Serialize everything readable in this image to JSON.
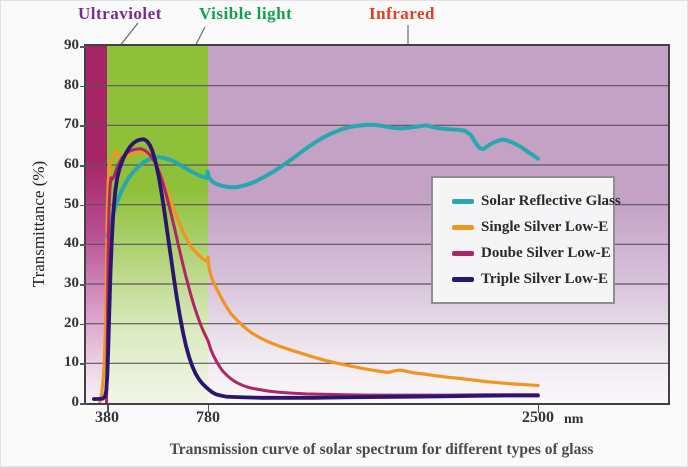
{
  "spectrum_labels": [
    {
      "id": "ultraviolet",
      "text": "Ultraviolet",
      "color": "#7b2b8f"
    },
    {
      "id": "visible-light",
      "text": "Visible light",
      "color": "#12a14b"
    },
    {
      "id": "infrared",
      "text": "Infrared",
      "color": "#e23d1d"
    }
  ],
  "chart_data": {
    "type": "line",
    "title": "Transmission curve of solar spectrum for different types of glass",
    "ylabel": "Transmittance (%)",
    "x_unit": "nm",
    "ylim": [
      0,
      90
    ],
    "y_ticks": [
      0,
      10,
      20,
      30,
      40,
      50,
      60,
      70,
      80,
      90
    ],
    "x_ticks": [
      380,
      780,
      2500
    ],
    "grid": true,
    "grid_color": "#5c555c",
    "legend_position": "middle-right",
    "x_axis": {
      "anchors_nm_to_frac": [
        [
          300,
          0.0
        ],
        [
          380,
          0.0361
        ],
        [
          780,
          0.2096
        ],
        [
          2500,
          0.7766
        ]
      ]
    },
    "bands": [
      {
        "name": "Ultraviolet",
        "from_nm": 300,
        "to_nm": 380,
        "color": "#a62566"
      },
      {
        "name": "Visible light",
        "from_nm": 380,
        "to_nm": 780,
        "color": "#8fc03a"
      },
      {
        "name": "Infrared",
        "from_nm": 780,
        "to_nm": 3000,
        "color": "#c3a2c5"
      }
    ],
    "series": [
      {
        "name": "Solar Reflective Glass",
        "color": "#28a8ae",
        "stroke_width": 4,
        "points": [
          [
            383,
            42
          ],
          [
            388,
            43.5
          ],
          [
            395,
            45.5
          ],
          [
            405,
            47.8
          ],
          [
            418,
            50.4
          ],
          [
            432,
            52.7
          ],
          [
            448,
            54.8
          ],
          [
            465,
            56.7
          ],
          [
            485,
            58.3
          ],
          [
            505,
            59.6
          ],
          [
            525,
            60.7
          ],
          [
            545,
            61.4
          ],
          [
            565,
            61.8
          ],
          [
            585,
            62
          ],
          [
            605,
            61.8
          ],
          [
            625,
            61.4
          ],
          [
            645,
            60.9
          ],
          [
            665,
            60.2
          ],
          [
            685,
            59.4
          ],
          [
            705,
            58.7
          ],
          [
            725,
            58
          ],
          [
            745,
            57.4
          ],
          [
            762,
            57
          ],
          [
            775,
            56.7
          ],
          [
            779,
            58.3
          ],
          [
            784,
            57
          ],
          [
            800,
            55.9
          ],
          [
            825,
            55.2
          ],
          [
            855,
            54.7
          ],
          [
            890,
            54.4
          ],
          [
            930,
            54.4
          ],
          [
            975,
            54.9
          ],
          [
            1020,
            55.7
          ],
          [
            1065,
            56.8
          ],
          [
            1110,
            58
          ],
          [
            1155,
            59.4
          ],
          [
            1200,
            60.9
          ],
          [
            1245,
            62.5
          ],
          [
            1290,
            64.1
          ],
          [
            1335,
            65.6
          ],
          [
            1380,
            66.9
          ],
          [
            1425,
            68
          ],
          [
            1470,
            68.9
          ],
          [
            1515,
            69.5
          ],
          [
            1560,
            69.9
          ],
          [
            1605,
            70.1
          ],
          [
            1650,
            70.1
          ],
          [
            1695,
            69.8
          ],
          [
            1740,
            69.4
          ],
          [
            1785,
            69.2
          ],
          [
            1830,
            69.4
          ],
          [
            1875,
            69.7
          ],
          [
            1915,
            70
          ],
          [
            1950,
            69.6
          ],
          [
            1990,
            69.2
          ],
          [
            2035,
            69
          ],
          [
            2080,
            68.9
          ],
          [
            2120,
            68.6
          ],
          [
            2150,
            67.6
          ],
          [
            2175,
            65.6
          ],
          [
            2195,
            64.3
          ],
          [
            2215,
            64
          ],
          [
            2240,
            64.9
          ],
          [
            2265,
            65.6
          ],
          [
            2290,
            66.1
          ],
          [
            2315,
            66.4
          ],
          [
            2340,
            66.2
          ],
          [
            2365,
            65.7
          ],
          [
            2395,
            65
          ],
          [
            2425,
            64.1
          ],
          [
            2455,
            63.1
          ],
          [
            2480,
            62.3
          ],
          [
            2500,
            61.6
          ]
        ]
      },
      {
        "name": "Single Silver Low-E",
        "color": "#f0951f",
        "stroke_width": 3.2,
        "points": [
          [
            352,
            0
          ],
          [
            360,
            2.5
          ],
          [
            368,
            8
          ],
          [
            374,
            18
          ],
          [
            378,
            34
          ],
          [
            381,
            48
          ],
          [
            385,
            56
          ],
          [
            390,
            59.8
          ],
          [
            397,
            61
          ],
          [
            404,
            62.2
          ],
          [
            411,
            63.2
          ],
          [
            417,
            63.6
          ],
          [
            423,
            62.9
          ],
          [
            429,
            62.1
          ],
          [
            436,
            61.7
          ],
          [
            446,
            61.9
          ],
          [
            460,
            62.2
          ],
          [
            476,
            62.6
          ],
          [
            492,
            63
          ],
          [
            508,
            63.3
          ],
          [
            522,
            63.4
          ],
          [
            537,
            63
          ],
          [
            552,
            62.1
          ],
          [
            567,
            60.7
          ],
          [
            582,
            58.9
          ],
          [
            600,
            56.3
          ],
          [
            618,
            53.4
          ],
          [
            636,
            50.4
          ],
          [
            654,
            47.4
          ],
          [
            672,
            44.6
          ],
          [
            690,
            42
          ],
          [
            708,
            39.8
          ],
          [
            726,
            38.4
          ],
          [
            740,
            37.5
          ],
          [
            755,
            36.6
          ],
          [
            768,
            36
          ],
          [
            777,
            35.7
          ],
          [
            781,
            36.8
          ],
          [
            786,
            34
          ],
          [
            800,
            31.4
          ],
          [
            820,
            29.3
          ],
          [
            845,
            26.9
          ],
          [
            870,
            24.7
          ],
          [
            900,
            22.5
          ],
          [
            935,
            20.7
          ],
          [
            970,
            19.1
          ],
          [
            1010,
            17.6
          ],
          [
            1060,
            16.2
          ],
          [
            1110,
            15.1
          ],
          [
            1160,
            14.2
          ],
          [
            1215,
            13.3
          ],
          [
            1275,
            12.4
          ],
          [
            1335,
            11.5
          ],
          [
            1395,
            10.7
          ],
          [
            1455,
            10
          ],
          [
            1515,
            9.4
          ],
          [
            1575,
            8.8
          ],
          [
            1635,
            8.3
          ],
          [
            1690,
            7.9
          ],
          [
            1720,
            7.7
          ],
          [
            1750,
            8.1
          ],
          [
            1780,
            8.3
          ],
          [
            1815,
            8
          ],
          [
            1855,
            7.6
          ],
          [
            1905,
            7.3
          ],
          [
            1960,
            6.9
          ],
          [
            2025,
            6.5
          ],
          [
            2090,
            6.2
          ],
          [
            2160,
            5.8
          ],
          [
            2230,
            5.4
          ],
          [
            2300,
            5.1
          ],
          [
            2375,
            4.8
          ],
          [
            2445,
            4.6
          ],
          [
            2500,
            4.4
          ]
        ]
      },
      {
        "name": "Doube Silver Low-E",
        "color": "#b02566",
        "stroke_width": 3,
        "points": [
          [
            378,
            0
          ],
          [
            381,
            14
          ],
          [
            384,
            36
          ],
          [
            388,
            49
          ],
          [
            392,
            54.5
          ],
          [
            396,
            56.8
          ],
          [
            401,
            56.4
          ],
          [
            408,
            57.2
          ],
          [
            416,
            58.7
          ],
          [
            426,
            60.3
          ],
          [
            438,
            61.7
          ],
          [
            452,
            62.7
          ],
          [
            467,
            63.4
          ],
          [
            482,
            63.8
          ],
          [
            497,
            64
          ],
          [
            512,
            64.1
          ],
          [
            527,
            63.8
          ],
          [
            542,
            63.1
          ],
          [
            557,
            62
          ],
          [
            572,
            60.4
          ],
          [
            587,
            58.2
          ],
          [
            602,
            55.4
          ],
          [
            617,
            52
          ],
          [
            632,
            48.2
          ],
          [
            647,
            44.2
          ],
          [
            662,
            40
          ],
          [
            677,
            35.9
          ],
          [
            692,
            32
          ],
          [
            707,
            28.4
          ],
          [
            722,
            25.1
          ],
          [
            737,
            22.2
          ],
          [
            752,
            19.6
          ],
          [
            766,
            17.5
          ],
          [
            780,
            15.7
          ],
          [
            794,
            13.6
          ],
          [
            808,
            12
          ],
          [
            824,
            10.5
          ],
          [
            840,
            9.2
          ],
          [
            860,
            7.9
          ],
          [
            882,
            6.8
          ],
          [
            905,
            5.9
          ],
          [
            932,
            5.1
          ],
          [
            962,
            4.4
          ],
          [
            1000,
            3.8
          ],
          [
            1045,
            3.4
          ],
          [
            1095,
            3
          ],
          [
            1150,
            2.7
          ],
          [
            1215,
            2.5
          ],
          [
            1290,
            2.3
          ],
          [
            1380,
            2.2
          ],
          [
            1490,
            2.1
          ],
          [
            1620,
            2
          ],
          [
            1760,
            2
          ],
          [
            1900,
            2
          ],
          [
            2050,
            2
          ],
          [
            2200,
            2.1
          ],
          [
            2350,
            2.1
          ],
          [
            2500,
            2.1
          ]
        ]
      },
      {
        "name": "Triple Silver Low-E",
        "color": "#2a1570",
        "stroke_width": 3.8,
        "points": [
          [
            330,
            1
          ],
          [
            348,
            1
          ],
          [
            364,
            1.1
          ],
          [
            372,
            1.6
          ],
          [
            377,
            3
          ],
          [
            381,
            7
          ],
          [
            385,
            14
          ],
          [
            389,
            23
          ],
          [
            394,
            33
          ],
          [
            399,
            41
          ],
          [
            405,
            48
          ],
          [
            412,
            53
          ],
          [
            420,
            56.6
          ],
          [
            430,
            59.2
          ],
          [
            442,
            61.3
          ],
          [
            456,
            63.1
          ],
          [
            470,
            64.5
          ],
          [
            484,
            65.5
          ],
          [
            498,
            66.1
          ],
          [
            512,
            66.4
          ],
          [
            525,
            66.5
          ],
          [
            537,
            66.1
          ],
          [
            549,
            65.1
          ],
          [
            561,
            63.3
          ],
          [
            573,
            60.6
          ],
          [
            585,
            57
          ],
          [
            597,
            52.6
          ],
          [
            609,
            47.6
          ],
          [
            621,
            42.2
          ],
          [
            633,
            36.8
          ],
          [
            645,
            31.4
          ],
          [
            657,
            26.4
          ],
          [
            669,
            21.8
          ],
          [
            681,
            17.8
          ],
          [
            693,
            14.4
          ],
          [
            705,
            11.6
          ],
          [
            717,
            9.4
          ],
          [
            730,
            7.5
          ],
          [
            744,
            6
          ],
          [
            758,
            4.9
          ],
          [
            772,
            4
          ],
          [
            786,
            3.3
          ],
          [
            802,
            2.7
          ],
          [
            822,
            2.2
          ],
          [
            846,
            1.9
          ],
          [
            876,
            1.6
          ],
          [
            915,
            1.5
          ],
          [
            975,
            1.4
          ],
          [
            1060,
            1.3
          ],
          [
            1180,
            1.3
          ],
          [
            1330,
            1.3
          ],
          [
            1490,
            1.4
          ],
          [
            1660,
            1.5
          ],
          [
            1830,
            1.6
          ],
          [
            2000,
            1.7
          ],
          [
            2170,
            1.8
          ],
          [
            2330,
            1.9
          ],
          [
            2500,
            1.9
          ]
        ]
      }
    ]
  }
}
